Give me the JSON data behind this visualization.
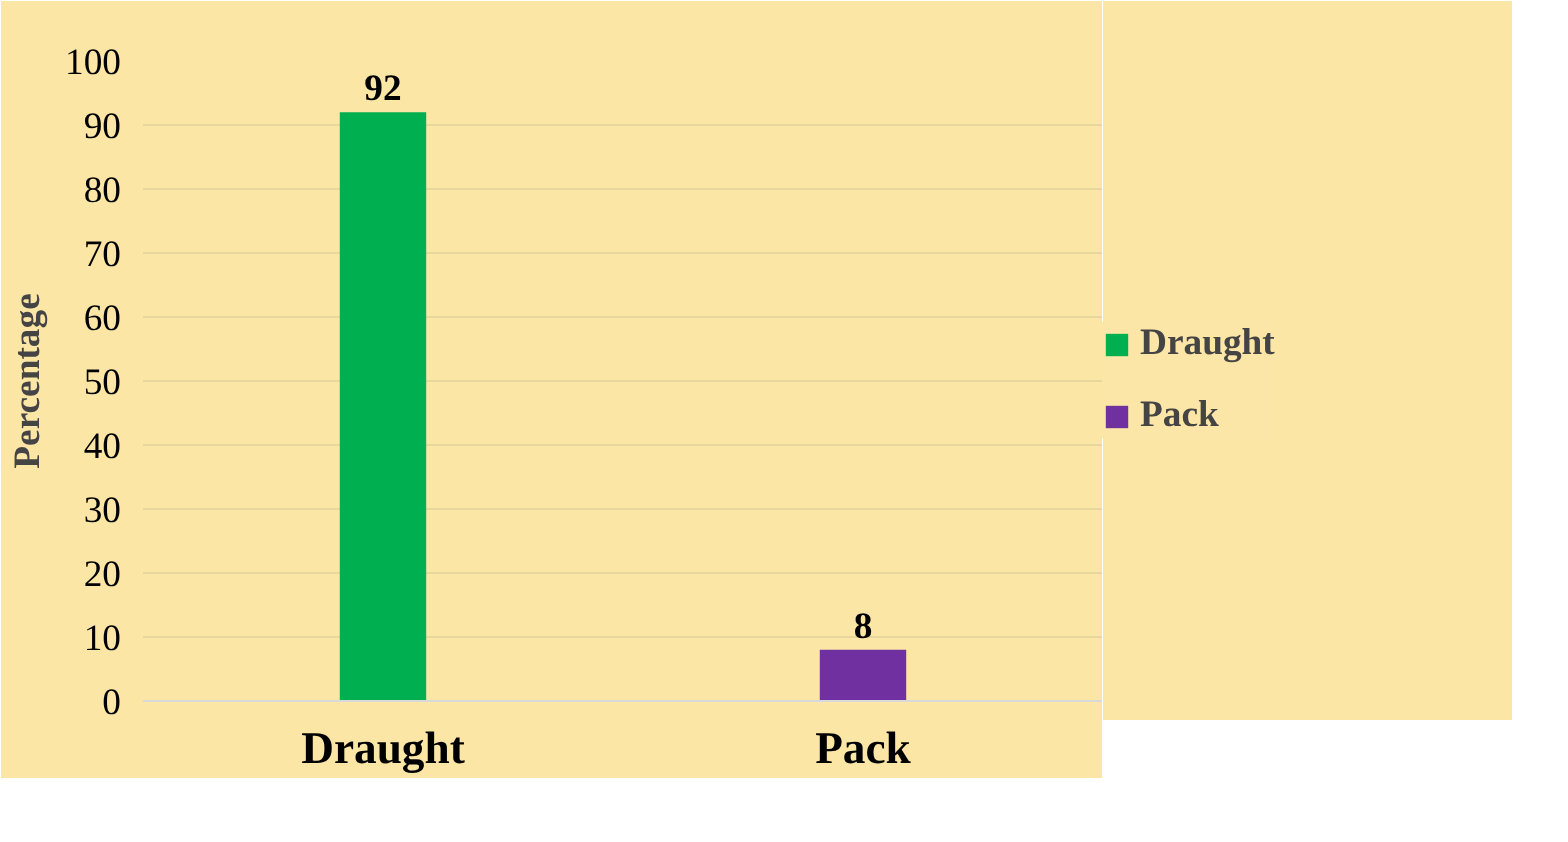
{
  "chart_data": {
    "type": "bar",
    "ylabel": "Percentage",
    "categories": [
      "Draught",
      "Pack"
    ],
    "series": [
      {
        "name": "Draught",
        "color": "#00b050",
        "values": [
          92,
          null
        ]
      },
      {
        "name": "Pack",
        "color": "#7030a0",
        "values": [
          null,
          8
        ]
      }
    ],
    "ylim": [
      0,
      100
    ],
    "yticks": [
      0,
      10,
      20,
      30,
      40,
      50,
      60,
      70,
      80,
      90,
      100
    ],
    "grid": "y",
    "legend": "right",
    "data_labels": true
  }
}
